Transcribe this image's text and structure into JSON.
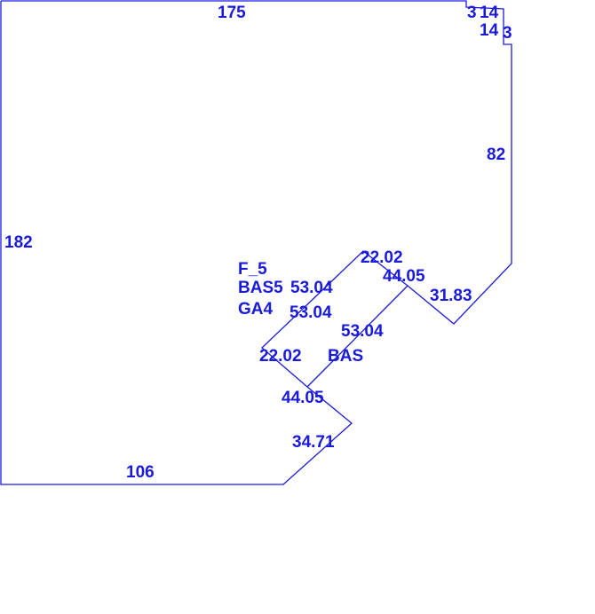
{
  "line_color": "#1a1adc",
  "dimensions": {
    "top": "175",
    "left": "182",
    "bottom": "106",
    "right": "82",
    "step_a": "3",
    "step_b": "14",
    "step_c": "14",
    "step_d": "3",
    "diag_right": "31.83",
    "upper_short": "22.02",
    "upper_long": "44.05",
    "inner_a": "53.04",
    "inner_b": "53.04",
    "inner_c": "53.04",
    "lower_short": "22.02",
    "lower_long": "44.05",
    "bottom_diag": "34.71"
  },
  "areas": {
    "floor": "F_5",
    "bas1": "BAS5",
    "garage": "GA4",
    "bas2": "BAS"
  }
}
